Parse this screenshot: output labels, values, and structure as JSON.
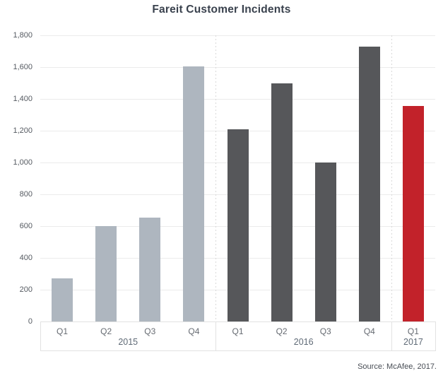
{
  "title": "Fareit Customer Incidents",
  "source_note": "Source: McAfee, 2017.",
  "chart_data": {
    "type": "bar",
    "title": "Fareit Customer Incidents",
    "xlabel": "",
    "ylabel": "",
    "ylim": [
      0,
      1800
    ],
    "ytick_interval": 200,
    "ytick_labels": [
      "0",
      "200",
      "400",
      "600",
      "800",
      "1,000",
      "1,200",
      "1,400",
      "1,600",
      "1,800"
    ],
    "grid": true,
    "legend_position": "none",
    "groups": [
      {
        "year": "2015",
        "categories": [
          "Q1",
          "Q2",
          "Q3",
          "Q4"
        ],
        "values": [
          270,
          600,
          655,
          1605
        ],
        "bar_color": "#aeb6bf"
      },
      {
        "year": "2016",
        "categories": [
          "Q1",
          "Q2",
          "Q3",
          "Q4"
        ],
        "values": [
          1210,
          1500,
          1000,
          1730
        ],
        "bar_color": "#56575a"
      },
      {
        "year": "2017",
        "categories": [
          "Q1"
        ],
        "values": [
          1355
        ],
        "bar_color": "#c2222a"
      }
    ],
    "colors": {
      "grid_line": "#ebebeb",
      "group_separator": "#d9d9d9",
      "band_border": "#e2e2e2",
      "axis_text": "#555a61",
      "year_text": "#5f6a76",
      "title_text": "#39414d",
      "source_text": "#474c54",
      "background": "#ffffff"
    }
  }
}
